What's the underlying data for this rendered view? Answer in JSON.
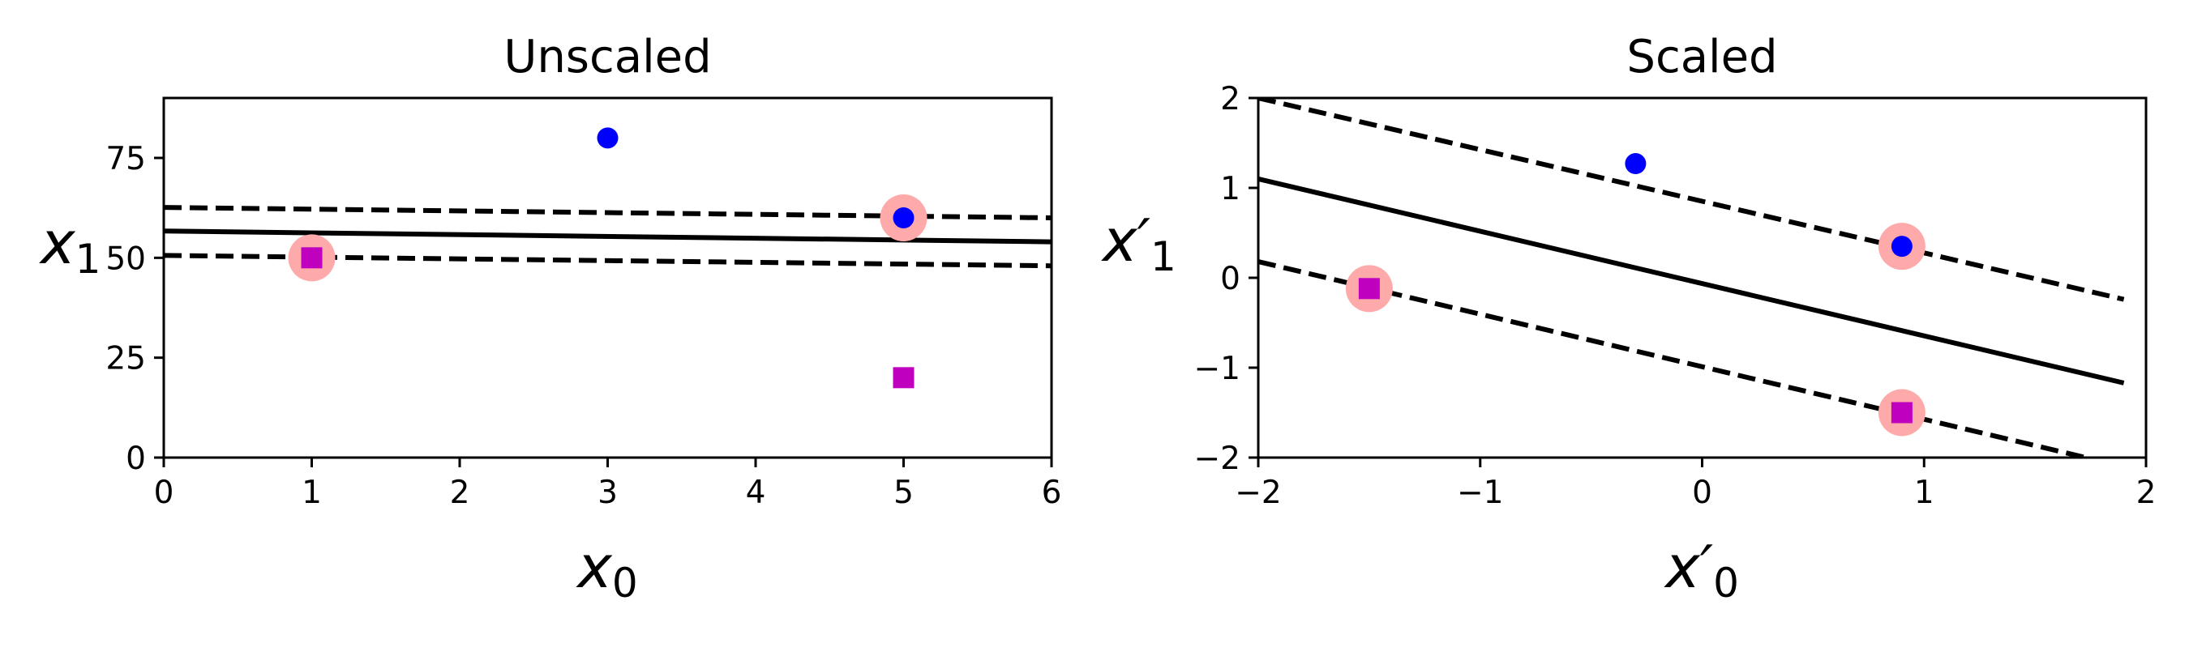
{
  "chart_data": [
    {
      "type": "scatter",
      "title": "Unscaled",
      "xlabel": "x",
      "xlabel_sub": "0",
      "ylabel": "x",
      "ylabel_sub": "1",
      "xlim": [
        0,
        6
      ],
      "ylim": [
        0,
        90
      ],
      "xticks": [
        0,
        1,
        2,
        3,
        4,
        5,
        6
      ],
      "xtick_labels": [
        "0",
        "1",
        "2",
        "3",
        "4",
        "5",
        "6"
      ],
      "yticks": [
        0,
        25,
        50,
        75
      ],
      "ytick_labels": [
        "0",
        "25",
        "50",
        "75"
      ],
      "grid": false,
      "series": [
        {
          "marker": "circle",
          "color": "#0000ff",
          "points": [
            [
              3,
              80
            ],
            [
              5,
              60
            ]
          ]
        },
        {
          "marker": "square",
          "color": "#bf00bf",
          "points": [
            [
              1,
              50
            ],
            [
              5,
              20
            ]
          ]
        }
      ],
      "support_vectors": {
        "color": "#ffaaaa",
        "points": [
          [
            1,
            50
          ],
          [
            5,
            60
          ]
        ]
      },
      "decision_boundary": {
        "style": "solid",
        "color": "#000000",
        "points": [
          [
            0,
            56.7
          ],
          [
            6,
            54.0
          ]
        ]
      },
      "margins": [
        {
          "style": "dashed",
          "color": "#000000",
          "points": [
            [
              0,
              62.6
            ],
            [
              6,
              60.0
            ]
          ]
        },
        {
          "style": "dashed",
          "color": "#000000",
          "points": [
            [
              0,
              50.6
            ],
            [
              6,
              48.0
            ]
          ]
        }
      ]
    },
    {
      "type": "scatter",
      "title": "Scaled",
      "xlabel": "x′",
      "xlabel_sub": "0",
      "ylabel": "x′",
      "ylabel_sub": "1",
      "xlim": [
        -2,
        2
      ],
      "ylim": [
        -2,
        2
      ],
      "xticks": [
        -2,
        -1,
        0,
        1,
        2
      ],
      "xtick_labels": [
        "−2",
        "−1",
        "0",
        "1",
        "2"
      ],
      "yticks": [
        -2,
        -1,
        0,
        1,
        2
      ],
      "ytick_labels": [
        "−2",
        "−1",
        "0",
        "1",
        "2"
      ],
      "grid": false,
      "series": [
        {
          "marker": "circle",
          "color": "#0000ff",
          "points": [
            [
              -0.3,
              1.27
            ],
            [
              0.9,
              0.35
            ]
          ]
        },
        {
          "marker": "square",
          "color": "#bf00bf",
          "points": [
            [
              -1.5,
              -0.12
            ],
            [
              0.9,
              -1.5
            ]
          ]
        }
      ],
      "support_vectors": {
        "color": "#ffaaaa",
        "points": [
          [
            -1.5,
            -0.12
          ],
          [
            0.9,
            0.35
          ],
          [
            0.9,
            -1.5
          ]
        ]
      },
      "decision_boundary": {
        "style": "solid",
        "color": "#000000",
        "points": [
          [
            -2,
            1.1
          ],
          [
            1.9,
            -1.17
          ]
        ]
      },
      "margins": [
        {
          "style": "dashed",
          "color": "#000000",
          "points": [
            [
              -2,
              2.0
            ],
            [
              1.9,
              -0.24
            ]
          ]
        },
        {
          "style": "dashed",
          "color": "#000000",
          "points": [
            [
              -2,
              0.18
            ],
            [
              1.9,
              -2.1
            ]
          ]
        }
      ]
    }
  ]
}
